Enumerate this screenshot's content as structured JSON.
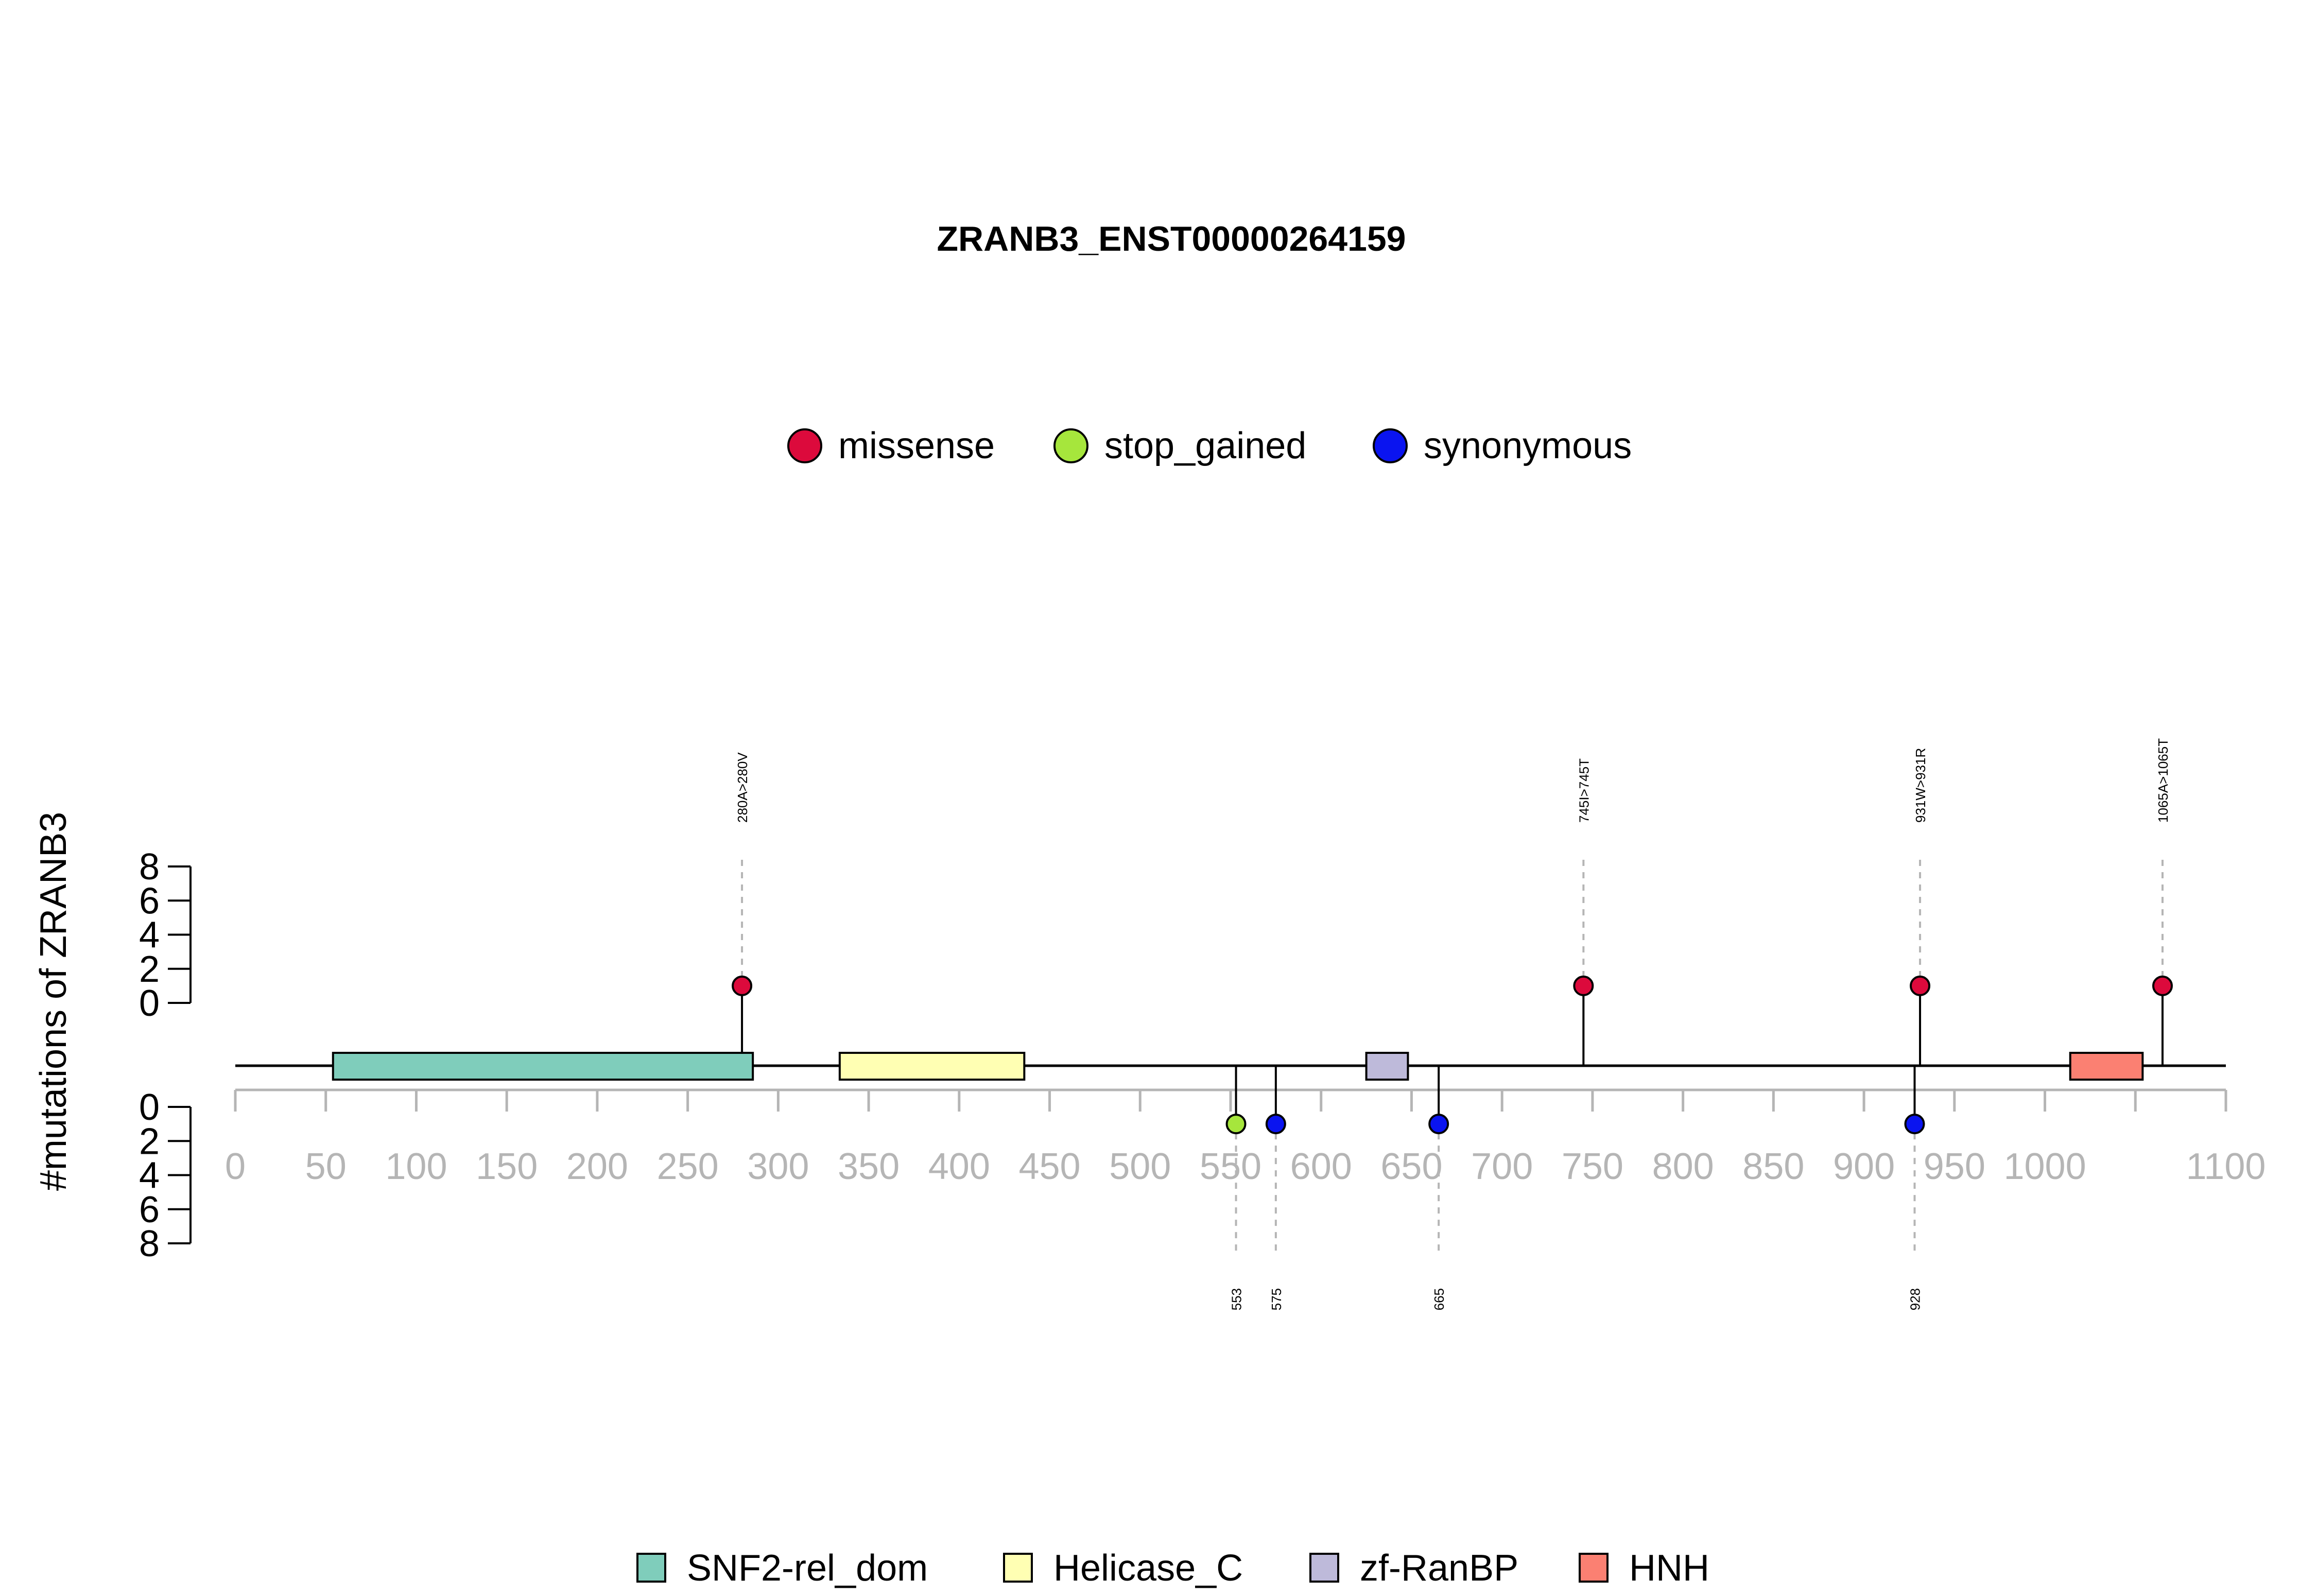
{
  "chart_data": {
    "type": "lollipop",
    "title": "ZRANB3_ENST00000264159",
    "ylabel": "#mutations of ZRANB3",
    "xlim": [
      0,
      1100
    ],
    "x_ticks": [
      0,
      50,
      100,
      150,
      200,
      250,
      300,
      350,
      400,
      450,
      500,
      550,
      600,
      650,
      700,
      750,
      800,
      850,
      900,
      950,
      1000,
      1100
    ],
    "x_minor_ticks": [
      1050
    ],
    "y_axis_upper": {
      "ticks": [
        0,
        2,
        4,
        6,
        8
      ],
      "ylim": [
        0,
        8
      ]
    },
    "y_axis_lower": {
      "ticks": [
        0,
        2,
        4,
        6,
        8
      ],
      "ylim": [
        0,
        8
      ]
    },
    "mutation_legend": [
      {
        "label": "missense",
        "color": "#DC0A3C"
      },
      {
        "label": "stop_gained",
        "color": "#A6E63C"
      },
      {
        "label": "synonymous",
        "color": "#0A14F0"
      }
    ],
    "domain_legend": [
      {
        "label": "SNF2-rel_dom",
        "color": "#7FCDBB"
      },
      {
        "label": "Helicase_C",
        "color": "#FFFFB3"
      },
      {
        "label": "zf-RanBP",
        "color": "#BEBADA"
      },
      {
        "label": "HNH",
        "color": "#FB8072"
      }
    ],
    "domains": [
      {
        "name": "SNF2-rel_dom",
        "start": 54,
        "end": 286
      },
      {
        "name": "Helicase_C",
        "start": 334,
        "end": 436
      },
      {
        "name": "zf-RanBP",
        "start": 625,
        "end": 648
      },
      {
        "name": "HNH",
        "start": 1014,
        "end": 1054
      }
    ],
    "mutations_upper": [
      {
        "position": 280,
        "count": 1,
        "type": "missense",
        "label": "280A>280V"
      },
      {
        "position": 745,
        "count": 1,
        "type": "missense",
        "label": "745I>745T"
      },
      {
        "position": 931,
        "count": 1,
        "type": "missense",
        "label": "931W>931R"
      },
      {
        "position": 1065,
        "count": 1,
        "type": "missense",
        "label": "1065A>1065T"
      }
    ],
    "mutations_lower": [
      {
        "position": 553,
        "count": 1,
        "type": "stop_gained",
        "label": "553"
      },
      {
        "position": 575,
        "count": 1,
        "type": "synonymous",
        "label": "575"
      },
      {
        "position": 665,
        "count": 1,
        "type": "synonymous",
        "label": "665"
      },
      {
        "position": 928,
        "count": 1,
        "type": "synonymous",
        "label": "928"
      }
    ]
  }
}
